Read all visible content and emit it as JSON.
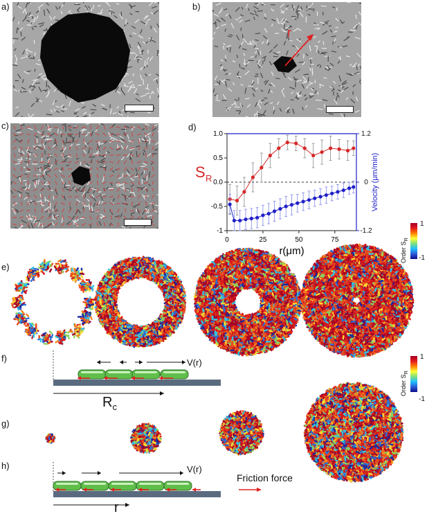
{
  "panels": {
    "a": "a)",
    "b": "b)",
    "c": "c)",
    "d": "d)",
    "e": "e)",
    "f": "f)",
    "g": "g)",
    "h": "h)"
  },
  "panel_b_arrow_label": "r",
  "colorbar_e": {
    "top": "1",
    "bottom": "-1",
    "title": "Order S",
    "sub": "R"
  },
  "colorbar_g": {
    "top": "1",
    "bottom": "-1",
    "title": "Order S",
    "sub": "R"
  },
  "panel_f": {
    "velocity_label": "V(r)",
    "radius_label": "R",
    "radius_sub": "c"
  },
  "panel_h": {
    "velocity_label": "V(r)",
    "distance_label": "r",
    "friction_label": "Friction force"
  },
  "colors": {
    "sr_series": "#d62728",
    "velocity_series": "#1f1fc8",
    "axis_right": "#1f1fc8",
    "friction_arrow": "#e02020",
    "cell": "#5fbf4a",
    "substrate": "#5b6b7f"
  },
  "chart_data": {
    "type": "line",
    "xlabel": "r(μm)",
    "ylabel_left": "S",
    "ylabel_left_sub": "R",
    "ylabel_right": "Velocity (μm/min)",
    "xlim": [
      0,
      90
    ],
    "ylim_left": [
      -1,
      1
    ],
    "ylim_right": [
      -1.2,
      1.2
    ],
    "x_ticks": [
      "0",
      "25",
      "50",
      "75"
    ],
    "y_left_ticks": [
      "1.0",
      "0.5",
      "0.0",
      "-0.5",
      "-1"
    ],
    "y_right_ticks": [
      "1.2",
      "0",
      "-1.2"
    ],
    "series": [
      {
        "axis": "left",
        "x": [
          2,
          7,
          12,
          18,
          24,
          30,
          36,
          42,
          48,
          54,
          60,
          66,
          72,
          78,
          84,
          88
        ],
        "y": [
          -0.35,
          -0.38,
          -0.2,
          0.1,
          0.3,
          0.55,
          0.7,
          0.82,
          0.8,
          0.7,
          0.55,
          0.62,
          0.7,
          0.68,
          0.65,
          0.7
        ],
        "err": [
          0.3,
          0.3,
          0.3,
          0.3,
          0.3,
          0.25,
          0.2,
          0.15,
          0.15,
          0.2,
          0.25,
          0.25,
          0.25,
          0.2,
          0.2,
          0.15
        ]
      },
      {
        "axis": "right",
        "x": [
          2,
          5,
          9,
          13,
          17,
          21,
          25,
          29,
          33,
          37,
          41,
          45,
          49,
          53,
          57,
          61,
          65,
          69,
          73,
          77,
          81,
          85,
          88
        ],
        "y": [
          -0.55,
          -0.95,
          -0.95,
          -0.92,
          -0.9,
          -0.88,
          -0.82,
          -0.78,
          -0.72,
          -0.66,
          -0.6,
          -0.56,
          -0.52,
          -0.48,
          -0.44,
          -0.4,
          -0.36,
          -0.32,
          -0.28,
          -0.24,
          -0.2,
          -0.15,
          -0.12
        ],
        "err": [
          0.25,
          0.25,
          0.25,
          0.25,
          0.25,
          0.25,
          0.25,
          0.25,
          0.25,
          0.25,
          0.25,
          0.25,
          0.22,
          0.22,
          0.22,
          0.2,
          0.2,
          0.2,
          0.18,
          0.18,
          0.18,
          0.15,
          0.15
        ]
      }
    ]
  }
}
